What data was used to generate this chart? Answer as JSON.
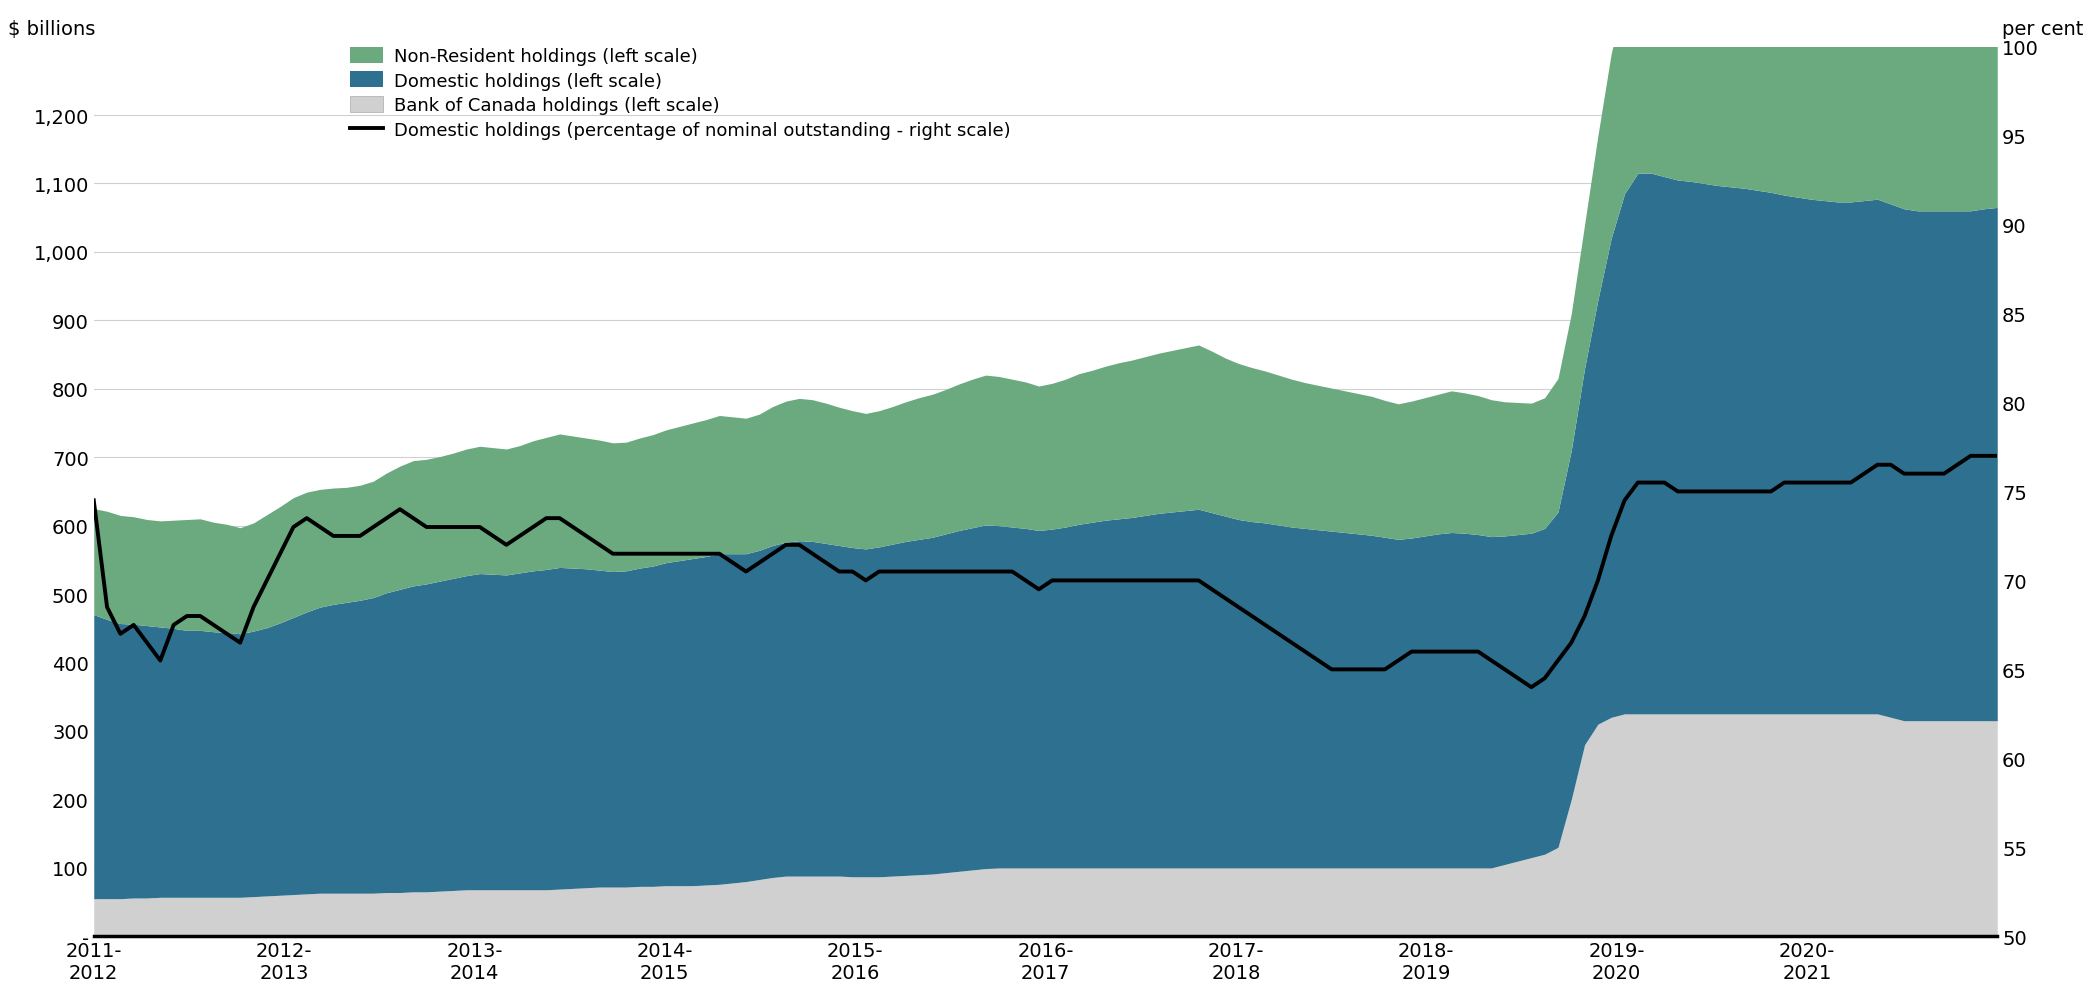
{
  "ylabel_left": "$ billions",
  "ylabel_right": "per cent",
  "ylim_left": [
    0,
    1300
  ],
  "ylim_right": [
    50,
    100
  ],
  "yticks_left": [
    0,
    100,
    200,
    300,
    400,
    500,
    600,
    700,
    800,
    900,
    1000,
    1100,
    1200
  ],
  "ytick_labels_left": [
    "-",
    "100",
    "200",
    "300",
    "400",
    "500",
    "600",
    "700",
    "800",
    "900",
    "1,000",
    "1,100",
    "1,200"
  ],
  "yticks_right": [
    50,
    55,
    60,
    65,
    70,
    75,
    80,
    85,
    90,
    95,
    100
  ],
  "xtick_labels": [
    "2011-\n2012",
    "2012-\n2013",
    "2013-\n2014",
    "2014-\n2015",
    "2015-\n2016",
    "2016-\n2017",
    "2017-\n2018",
    "2018-\n2019",
    "2019-\n2020",
    "2020-\n2021",
    ""
  ],
  "colors": {
    "non_resident": "#6aaa7e",
    "domestic": "#2e7090",
    "bank_canada": "#d0d0d0",
    "line": "#000000",
    "background": "#ffffff",
    "grid": "#d0d0d0"
  },
  "legend": [
    "Non-Resident holdings (left scale)",
    "Domestic holdings (left scale)",
    "Bank of Canada holdings (left scale)",
    "Domestic holdings (percentage of nominal outstanding - right scale)"
  ],
  "bank_canada": [
    55,
    55,
    55,
    56,
    56,
    57,
    57,
    57,
    57,
    57,
    57,
    57,
    58,
    59,
    60,
    61,
    62,
    63,
    63,
    63,
    63,
    63,
    64,
    64,
    65,
    65,
    66,
    67,
    68,
    68,
    68,
    68,
    68,
    68,
    68,
    69,
    70,
    71,
    72,
    72,
    72,
    73,
    73,
    74,
    74,
    74,
    75,
    76,
    78,
    80,
    83,
    86,
    88,
    88,
    88,
    88,
    88,
    87,
    87,
    87,
    88,
    89,
    90,
    91,
    93,
    95,
    97,
    99,
    100,
    100,
    100,
    100,
    100,
    100,
    100,
    100,
    100,
    100,
    100,
    100,
    100,
    100,
    100,
    100,
    100,
    100,
    100,
    100,
    100,
    100,
    100,
    100,
    100,
    100,
    100,
    100,
    100,
    100,
    100,
    100,
    100,
    100,
    100,
    100,
    100,
    100,
    105,
    110,
    115,
    120,
    130,
    200,
    280,
    310,
    320,
    325,
    325,
    325,
    325,
    325,
    325,
    325,
    325,
    325,
    325,
    325,
    325,
    325,
    325,
    325,
    325,
    325,
    325,
    325,
    325,
    320,
    315,
    315,
    315,
    315,
    315,
    315,
    315,
    315
  ],
  "domestic": [
    415,
    408,
    402,
    400,
    398,
    395,
    393,
    390,
    390,
    388,
    387,
    385,
    388,
    392,
    398,
    405,
    412,
    418,
    422,
    425,
    428,
    432,
    438,
    443,
    447,
    450,
    453,
    456,
    459,
    462,
    461,
    460,
    463,
    466,
    468,
    470,
    468,
    466,
    463,
    461,
    462,
    465,
    468,
    472,
    475,
    478,
    480,
    483,
    481,
    479,
    481,
    485,
    488,
    490,
    489,
    486,
    483,
    481,
    479,
    482,
    485,
    488,
    490,
    492,
    495,
    498,
    500,
    502,
    500,
    498,
    496,
    493,
    495,
    498,
    502,
    505,
    508,
    510,
    512,
    515,
    518,
    520,
    522,
    524,
    519,
    514,
    509,
    506,
    504,
    501,
    498,
    496,
    494,
    492,
    490,
    488,
    486,
    483,
    480,
    482,
    485,
    488,
    490,
    489,
    487,
    484,
    480,
    477,
    474,
    476,
    490,
    510,
    550,
    620,
    700,
    760,
    790,
    790,
    785,
    780,
    778,
    775,
    772,
    770,
    768,
    765,
    762,
    758,
    755,
    752,
    750,
    748,
    748,
    750,
    752,
    750,
    748,
    745,
    745,
    745,
    745,
    745,
    748,
    750
  ],
  "non_resident": [
    155,
    158,
    158,
    157,
    155,
    155,
    158,
    162,
    163,
    160,
    158,
    155,
    158,
    165,
    170,
    175,
    175,
    172,
    170,
    168,
    168,
    170,
    175,
    180,
    183,
    182,
    182,
    183,
    185,
    186,
    185,
    184,
    186,
    190,
    193,
    195,
    193,
    191,
    190,
    188,
    188,
    190,
    192,
    194,
    196,
    198,
    200,
    202,
    200,
    198,
    199,
    203,
    206,
    208,
    207,
    205,
    202,
    200,
    198,
    199,
    201,
    204,
    207,
    209,
    211,
    214,
    217,
    219,
    218,
    216,
    214,
    211,
    213,
    216,
    220,
    222,
    225,
    228,
    230,
    232,
    234,
    236,
    238,
    240,
    236,
    231,
    228,
    225,
    222,
    219,
    216,
    213,
    211,
    209,
    207,
    205,
    203,
    200,
    198,
    200,
    202,
    204,
    207,
    205,
    203,
    200,
    196,
    193,
    190,
    191,
    195,
    200,
    210,
    240,
    270,
    285,
    290,
    288,
    286,
    283,
    280,
    278,
    276,
    273,
    270,
    268,
    265,
    262,
    260,
    258,
    256,
    253,
    252,
    253,
    255,
    253,
    252,
    250,
    250,
    250,
    252,
    254,
    256,
    258
  ],
  "line_pct": [
    74.5,
    68.5,
    67.0,
    67.5,
    66.5,
    65.5,
    67.5,
    68.0,
    68.0,
    67.5,
    67.0,
    66.5,
    68.5,
    70.0,
    71.5,
    73.0,
    73.5,
    73.0,
    72.5,
    72.5,
    72.5,
    73.0,
    73.5,
    74.0,
    73.5,
    73.0,
    73.0,
    73.0,
    73.0,
    73.0,
    72.5,
    72.0,
    72.5,
    73.0,
    73.5,
    73.5,
    73.0,
    72.5,
    72.0,
    71.5,
    71.5,
    71.5,
    71.5,
    71.5,
    71.5,
    71.5,
    71.5,
    71.5,
    71.0,
    70.5,
    71.0,
    71.5,
    72.0,
    72.0,
    71.5,
    71.0,
    70.5,
    70.5,
    70.0,
    70.5,
    70.5,
    70.5,
    70.5,
    70.5,
    70.5,
    70.5,
    70.5,
    70.5,
    70.5,
    70.5,
    70.0,
    69.5,
    70.0,
    70.0,
    70.0,
    70.0,
    70.0,
    70.0,
    70.0,
    70.0,
    70.0,
    70.0,
    70.0,
    70.0,
    69.5,
    69.0,
    68.5,
    68.0,
    67.5,
    67.0,
    66.5,
    66.0,
    65.5,
    65.0,
    65.0,
    65.0,
    65.0,
    65.0,
    65.5,
    66.0,
    66.0,
    66.0,
    66.0,
    66.0,
    66.0,
    65.5,
    65.0,
    64.5,
    64.0,
    64.5,
    65.5,
    66.5,
    68.0,
    70.0,
    72.5,
    74.5,
    75.5,
    75.5,
    75.5,
    75.0,
    75.0,
    75.0,
    75.0,
    75.0,
    75.0,
    75.0,
    75.0,
    75.5,
    75.5,
    75.5,
    75.5,
    75.5,
    75.5,
    76.0,
    76.5,
    76.5,
    76.0,
    76.0,
    76.0,
    76.0,
    76.5,
    77.0,
    77.0,
    77.0
  ]
}
